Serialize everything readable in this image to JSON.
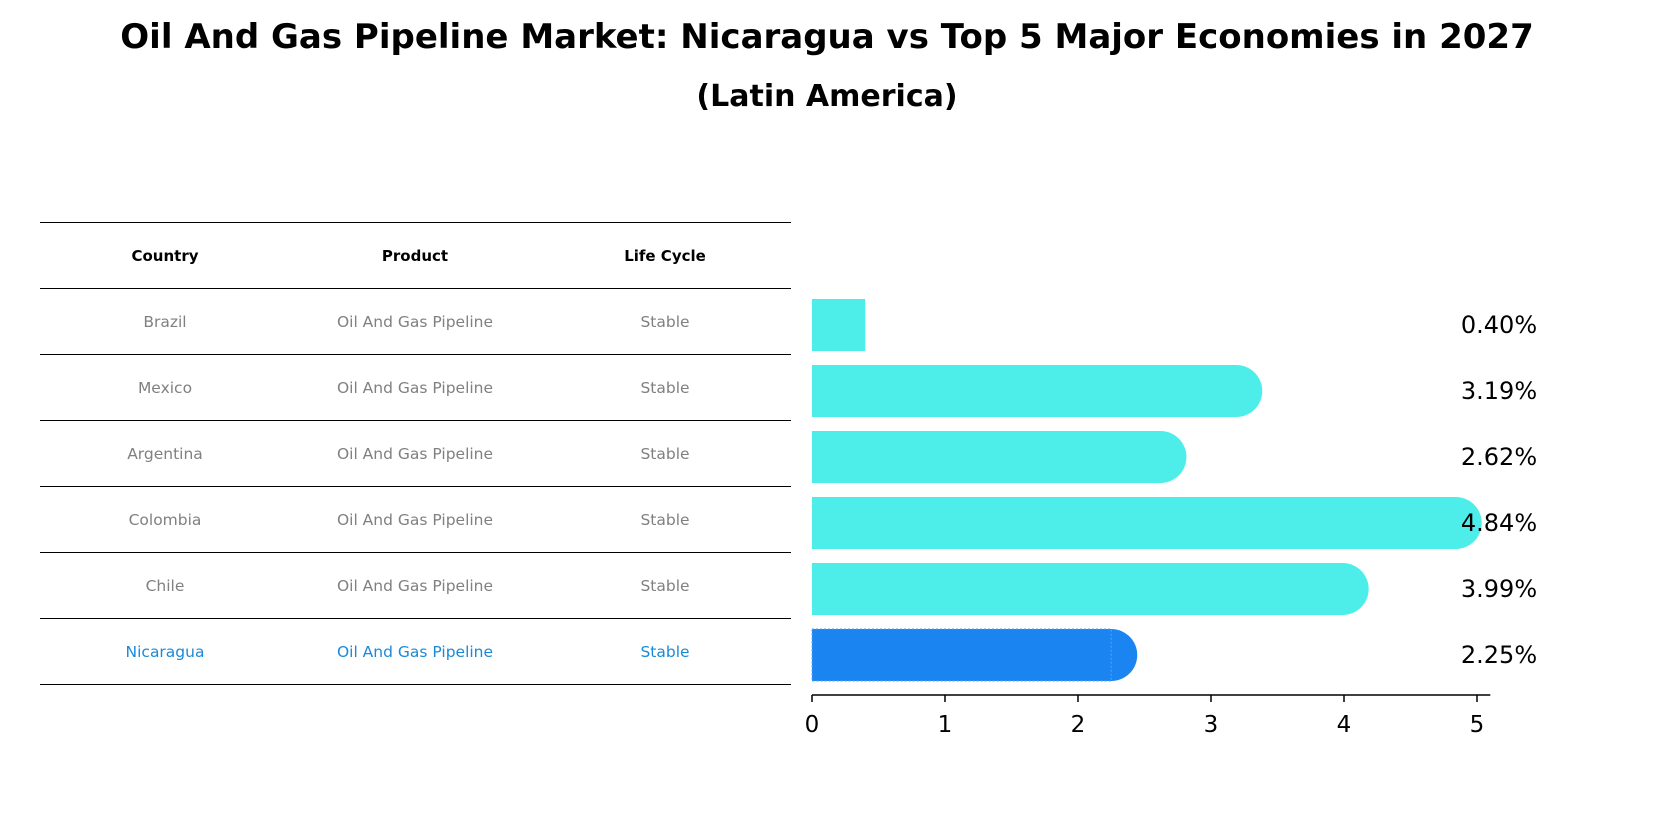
{
  "title": "Oil And Gas Pipeline Market: Nicaragua vs Top 5 Major Economies in 2027",
  "subtitle": "(Latin America)",
  "table": {
    "headers": [
      "Country",
      "Product",
      "Life Cycle"
    ],
    "rows": [
      {
        "country": "Brazil",
        "product": "Oil And Gas Pipeline",
        "life_cycle": "Stable"
      },
      {
        "country": "Mexico",
        "product": "Oil And Gas Pipeline",
        "life_cycle": "Stable"
      },
      {
        "country": "Argentina",
        "product": "Oil And Gas Pipeline",
        "life_cycle": "Stable"
      },
      {
        "country": "Colombia",
        "product": "Oil And Gas Pipeline",
        "life_cycle": "Stable"
      },
      {
        "country": "Chile",
        "product": "Oil And Gas Pipeline",
        "life_cycle": "Stable"
      },
      {
        "country": "Nicaragua",
        "product": "Oil And Gas Pipeline",
        "life_cycle": "Stable"
      }
    ]
  },
  "colors": {
    "bar": "#4deeea",
    "highlight_bar": "#1a85f0",
    "highlight_text": "#1a8ad8",
    "row_text": "#808080"
  },
  "chart_data": {
    "type": "bar",
    "orientation": "horizontal",
    "categories": [
      "Brazil",
      "Mexico",
      "Argentina",
      "Colombia",
      "Chile",
      "Nicaragua"
    ],
    "values": [
      0.4,
      3.19,
      2.62,
      4.84,
      3.99,
      2.25
    ],
    "value_labels": [
      "0.40%",
      "3.19%",
      "2.62%",
      "4.84%",
      "3.99%",
      "2.25%"
    ],
    "highlight": "Nicaragua",
    "xlim": [
      0,
      5.1
    ],
    "xticks": [
      0,
      1,
      2,
      3,
      4,
      5
    ],
    "xlabel": "",
    "ylabel": ""
  }
}
